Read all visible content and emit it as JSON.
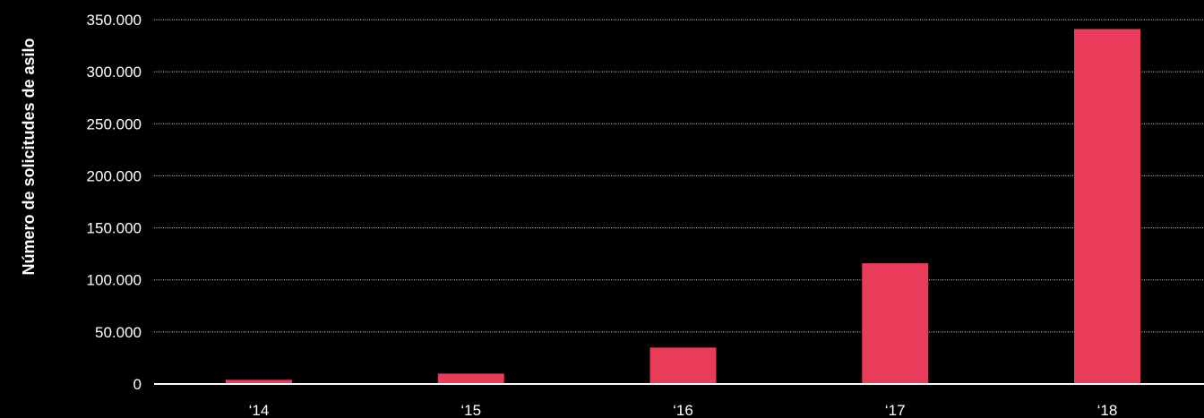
{
  "chart_data": {
    "type": "bar",
    "title": "",
    "xlabel": "",
    "ylabel": "Número de solicitudes de asilo",
    "categories": [
      "‘14",
      "‘15",
      "‘16",
      "‘17",
      "‘18"
    ],
    "values": [
      4000,
      10000,
      35000,
      116000,
      341000
    ],
    "ylim": [
      0,
      350000
    ],
    "yticks": [
      0,
      50000,
      100000,
      150000,
      200000,
      250000,
      300000,
      350000
    ],
    "ytick_labels": [
      "0",
      "50.000",
      "100.000",
      "150.000",
      "200.000",
      "250.000",
      "300.000",
      "350.000"
    ],
    "grid": true,
    "legend": "none"
  },
  "colors": {
    "background": "#000000",
    "bar": "#e83c5a",
    "text": "#ffffff",
    "grid": "#ffffff",
    "axis": "#ffffff"
  }
}
